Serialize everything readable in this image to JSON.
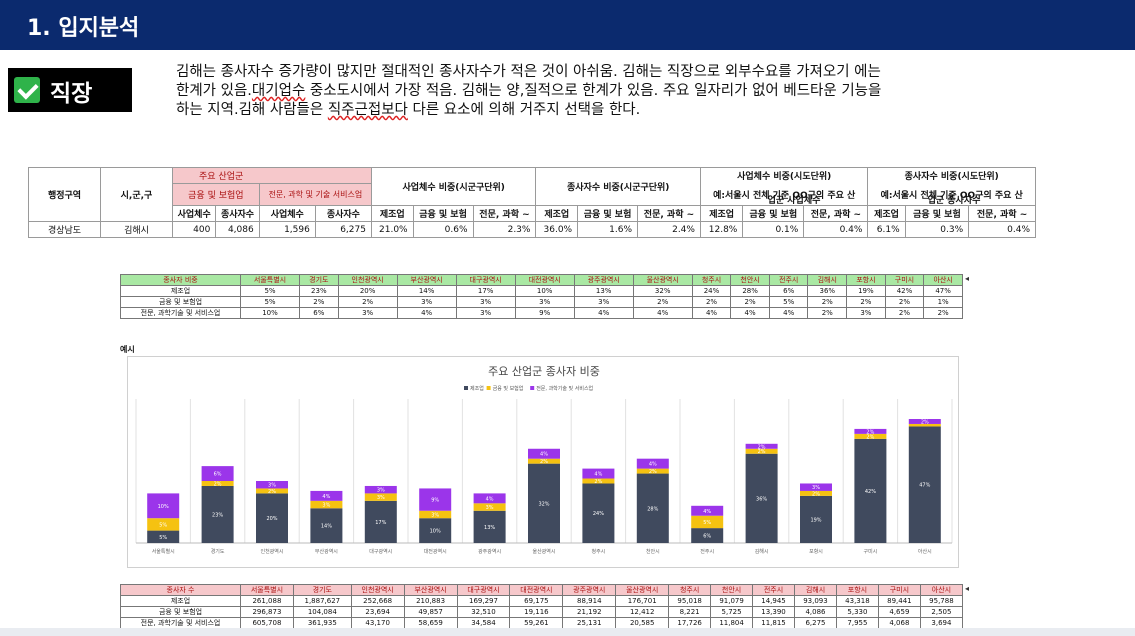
{
  "header": {
    "title": "1. 입지분석"
  },
  "badge": {
    "label": "직장"
  },
  "description": {
    "line1": "김해는 종사자수 증가량이 많지만 절대적인 종사자수가 적은 것이 아쉬움. 김해는 직장으로 외부수요를 가져오기 에는",
    "line2a": "한계가 있음.",
    "line2b": "대기업수",
    "line2c": " 중소도시에서 가장 적음. 김해는 양,질적으로 한계가 있음. 주요 일자리가 없어 베드타운 기능을",
    "line3a": "하는 지역.김해 사람들은 ",
    "line3b": "직주근접보다",
    "line3c": " 다른 요소에 의해 거주지 선택을 한다."
  },
  "summary_table": {
    "h_region": "행정구역",
    "h_city": "시,군,구",
    "h_main_industry": "주요 산업군",
    "h_finance": "금융 및 보험업",
    "h_prof": "전문, 과학 및 기술 서비스업",
    "h_biz_count": "사업체수",
    "h_workers": "종사자수",
    "h_biz_ratio_city": "사업체수 비중(시군구단위)",
    "h_worker_ratio_city": "종사자수 비중(시군구단위)",
    "h_biz_ratio_prov_1": "사업체수 비중(시도단위)",
    "h_biz_ratio_prov_2": "예:서울시 전체 기준 OO구의 주요 산",
    "h_biz_ratio_prov_3": "업군 사업체수",
    "h_worker_ratio_prov_1": "종사자수 비중(시도단위)",
    "h_worker_ratio_prov_2": "예:서울시 전체 기준 OO구의 주요 산",
    "h_worker_ratio_prov_3": "업군 종사자수",
    "h_mfg": "제조업",
    "h_fin_short": "금융 및 보험",
    "h_prof_short": "전문, 과학 ~",
    "row": {
      "region": "경상남도",
      "city": "김해시",
      "fin_biz": "400",
      "fin_workers": "4,086",
      "prof_biz": "1,596",
      "prof_workers": "6,275",
      "br_mfg": "21.0%",
      "br_fin": "0.6%",
      "br_prof": "2.3%",
      "wr_mfg": "36.0%",
      "wr_fin": "1.6%",
      "wr_prof": "2.4%",
      "bp_mfg": "12.8%",
      "bp_fin": "0.1%",
      "bp_prof": "0.4%",
      "wp_mfg": "6.1%",
      "wp_fin": "0.3%",
      "wp_prof": "0.4%"
    }
  },
  "ratio_table": {
    "corner": "종사자 비중",
    "cities": [
      "서울특별시",
      "경기도",
      "인천광역시",
      "부산광역시",
      "대구광역시",
      "대전광역시",
      "광주광역시",
      "울산광역시",
      "청주시",
      "천안시",
      "전주시",
      "김해시",
      "포항시",
      "구미시",
      "아산시"
    ],
    "rows": [
      {
        "label": "제조업",
        "values": [
          "5%",
          "23%",
          "20%",
          "14%",
          "17%",
          "10%",
          "13%",
          "32%",
          "24%",
          "28%",
          "6%",
          "36%",
          "19%",
          "42%",
          "47%"
        ]
      },
      {
        "label": "금융 및 보험업",
        "values": [
          "5%",
          "2%",
          "2%",
          "3%",
          "3%",
          "3%",
          "3%",
          "2%",
          "2%",
          "2%",
          "5%",
          "2%",
          "2%",
          "2%",
          "1%"
        ]
      },
      {
        "label": "전문, 과학기술 및 서비스업",
        "values": [
          "10%",
          "6%",
          "3%",
          "4%",
          "3%",
          "9%",
          "4%",
          "4%",
          "4%",
          "4%",
          "4%",
          "2%",
          "3%",
          "2%",
          "2%"
        ]
      }
    ]
  },
  "sample_label": "예시",
  "chart_data": {
    "type": "bar",
    "stacked": true,
    "title": "주요 산업군 종사자 비중",
    "categories": [
      "서울특별시",
      "경기도",
      "인천광역시",
      "부산광역시",
      "대구광역시",
      "대전광역시",
      "광주광역시",
      "울산광역시",
      "청주시",
      "천안시",
      "전주시",
      "김해시",
      "포항시",
      "구미시",
      "아산시"
    ],
    "series": [
      {
        "name": "제조업",
        "color": "#404a5e",
        "values": [
          5,
          23,
          20,
          14,
          17,
          10,
          13,
          32,
          24,
          28,
          6,
          36,
          19,
          42,
          47
        ]
      },
      {
        "name": "금융 및 보험업",
        "color": "#f5c211",
        "values": [
          5,
          2,
          2,
          3,
          3,
          3,
          3,
          2,
          2,
          2,
          5,
          2,
          2,
          2,
          1
        ]
      },
      {
        "name": "전문, 과학기술 및 서비스업",
        "color": "#9b35ea",
        "values": [
          10,
          6,
          3,
          4,
          3,
          9,
          4,
          4,
          4,
          4,
          4,
          2,
          3,
          2,
          2
        ]
      }
    ],
    "legend": "top",
    "grid": true
  },
  "count_table": {
    "corner": "종사자 수",
    "cities": [
      "서울특별시",
      "경기도",
      "인천광역시",
      "부산광역시",
      "대구광역시",
      "대전광역시",
      "광주광역시",
      "울산광역시",
      "청주시",
      "천안시",
      "전주시",
      "김해시",
      "포항시",
      "구미시",
      "아산시"
    ],
    "rows": [
      {
        "label": "제조업",
        "values": [
          "261,088",
          "1,887,627",
          "252,668",
          "210,883",
          "169,297",
          "69,175",
          "88,914",
          "176,701",
          "95,018",
          "91,079",
          "14,945",
          "93,093",
          "43,318",
          "89,441",
          "95,788"
        ]
      },
      {
        "label": "금융 및 보험업",
        "values": [
          "296,873",
          "104,084",
          "23,694",
          "49,857",
          "32,510",
          "19,116",
          "21,192",
          "12,412",
          "8,221",
          "5,725",
          "13,390",
          "4,086",
          "5,330",
          "4,659",
          "2,505"
        ]
      },
      {
        "label": "전문, 과학기술 및 서비스업",
        "values": [
          "605,708",
          "361,935",
          "43,170",
          "58,659",
          "34,584",
          "59,261",
          "25,131",
          "20,585",
          "17,726",
          "11,804",
          "11,815",
          "6,275",
          "7,955",
          "4,068",
          "3,694"
        ]
      }
    ]
  }
}
